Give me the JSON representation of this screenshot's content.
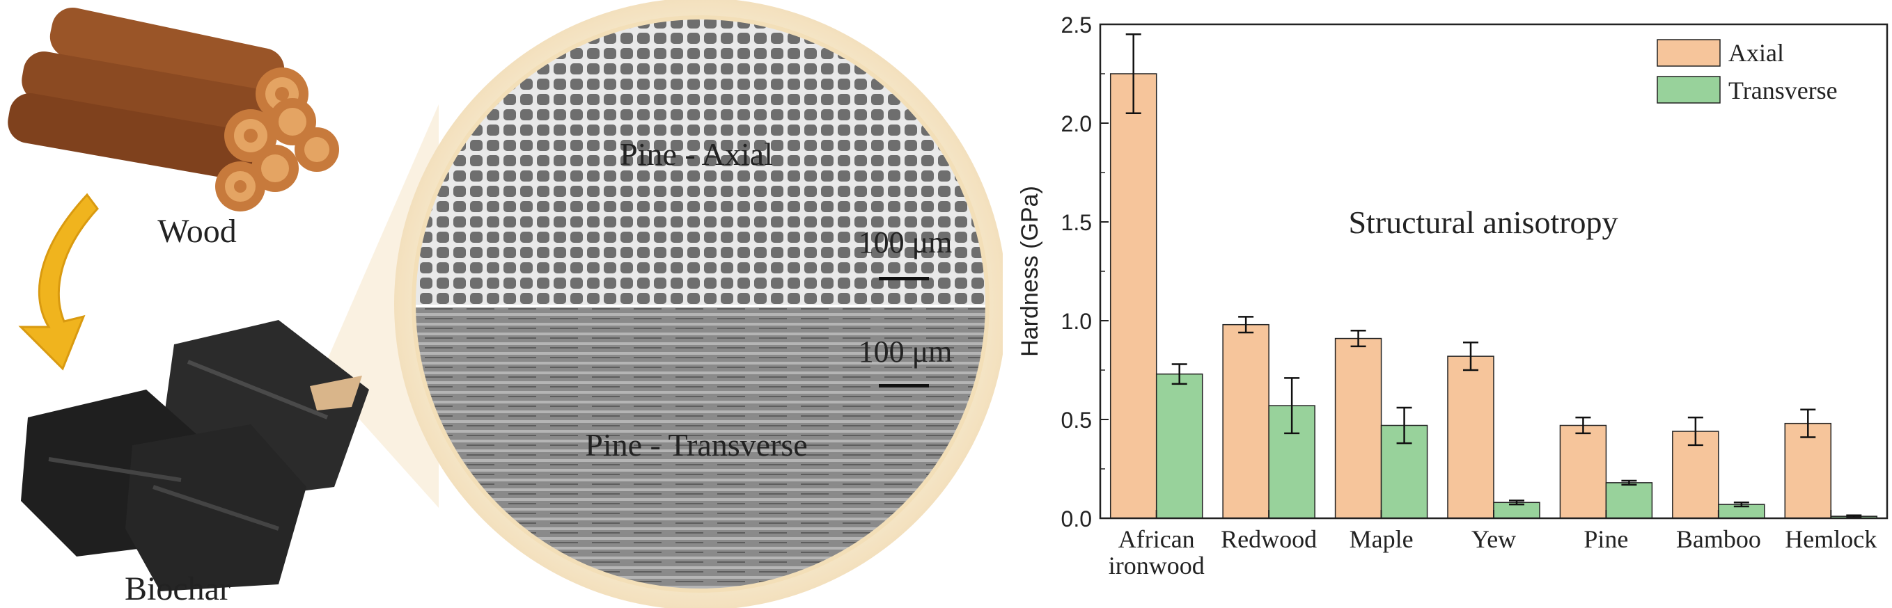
{
  "illustration": {
    "wood_label": "Wood",
    "biochar_label": "Biochar",
    "axial_label": "Pine - Axial",
    "transverse_label": "Pine - Transverse",
    "scale_bar_top": "100 μm",
    "scale_bar_bottom": "100 μm"
  },
  "colors": {
    "axial": "#f6c59b",
    "transverse": "#98d29b",
    "wood": "#8b4a22",
    "biochar": "#232323",
    "arrow": "#f0b41e",
    "halo": "#f7ecd6"
  },
  "chart_data": {
    "type": "bar",
    "ylabel": "Hardness (GPa)",
    "annotation": "Structural anisotropy",
    "ylim": [
      0,
      2.5
    ],
    "yticks": [
      "0.0",
      "0.5",
      "1.0",
      "1.5",
      "2.0",
      "2.5"
    ],
    "categories": [
      [
        "African",
        "ironwood"
      ],
      [
        "Redwood"
      ],
      [
        "Maple"
      ],
      [
        "Yew"
      ],
      [
        "Pine"
      ],
      [
        "Bamboo"
      ],
      [
        "Hemlock"
      ]
    ],
    "legend_position": "top-right",
    "series": [
      {
        "name": "Axial",
        "values": [
          2.25,
          0.98,
          0.91,
          0.82,
          0.47,
          0.44,
          0.48
        ],
        "errors": [
          0.2,
          0.04,
          0.04,
          0.07,
          0.04,
          0.07,
          0.07
        ]
      },
      {
        "name": "Transverse",
        "values": [
          0.73,
          0.57,
          0.47,
          0.08,
          0.18,
          0.07,
          0.01
        ],
        "errors": [
          0.05,
          0.14,
          0.09,
          0.01,
          0.01,
          0.01,
          0.005
        ]
      }
    ]
  }
}
